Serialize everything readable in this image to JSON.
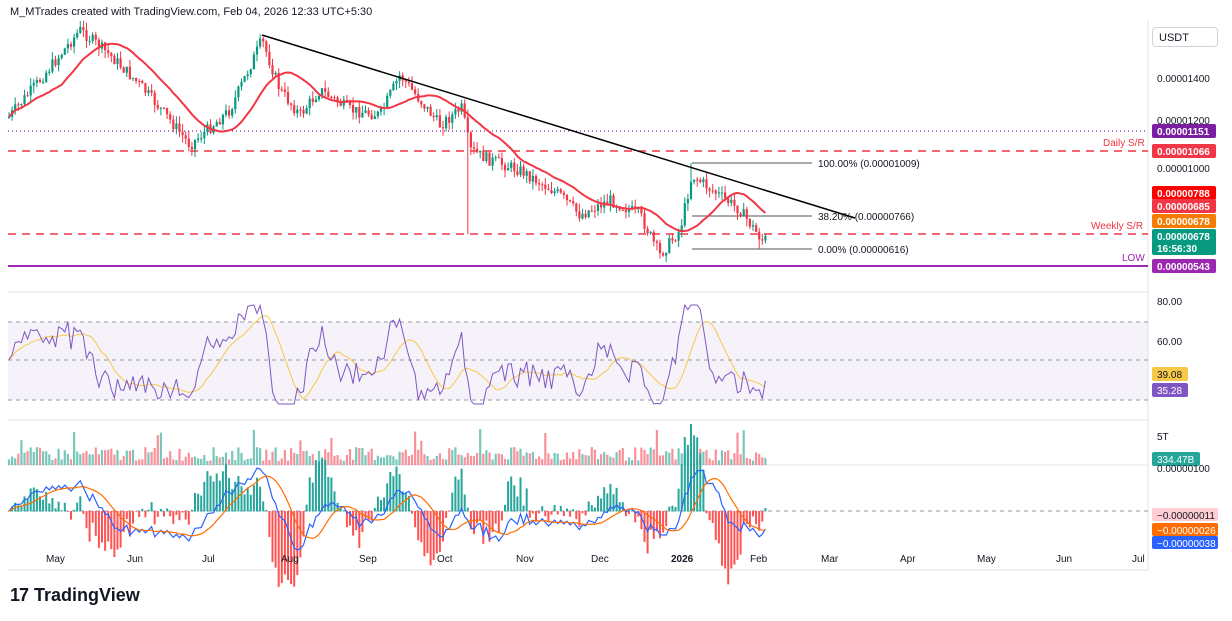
{
  "header": {
    "attribution": "M_MTrades created with TradingView.com, Feb 04, 2026 12:33 UTC+5:30"
  },
  "brand": {
    "name": "TradingView",
    "logo": "17"
  },
  "currency": "USDT",
  "chart_data": {
    "type": "candlestick",
    "x_labels": [
      "May",
      "Jun",
      "Jul",
      "Aug",
      "Sep",
      "Oct",
      "Nov",
      "Dec",
      "2026",
      "Feb",
      "Mar",
      "Apr",
      "May",
      "Jun",
      "Jul"
    ],
    "price_axis": {
      "tick_labels": [
        "0.00001400",
        "0.00001200",
        "0.00001000"
      ]
    },
    "price_badges": [
      {
        "label": "0.00001151",
        "color": "#7b1fa2"
      },
      {
        "label": "0.00001066",
        "color": "#f23645"
      },
      {
        "label": "0.00000788",
        "color": "#ff0000"
      },
      {
        "label": "0.00000685",
        "color": "#f23645"
      },
      {
        "label": "0.00000678",
        "color": "#f57c00"
      },
      {
        "label": "0.00000678",
        "color": "#089981"
      },
      {
        "label": "16:56:30",
        "color": "#089981"
      },
      {
        "label": "0.00000543",
        "color": "#9c27b0"
      }
    ],
    "annotations": {
      "daily_sr": "Daily S/R",
      "weekly_sr": "Weekly S/R",
      "low": "LOW",
      "fib_100": "100.00% (0.00001009)",
      "fib_382": "38.20% (0.00000766)",
      "fib_0": "0.00% (0.00000616)"
    },
    "rsi": {
      "tick_labels": [
        "80.00",
        "60.00"
      ],
      "badges": [
        {
          "label": "39.08",
          "color": "#f7c948"
        },
        {
          "label": "35.28",
          "color": "#7e57c2"
        }
      ]
    },
    "volume": {
      "tick_labels": [
        "5T"
      ],
      "badge": {
        "label": "334.47B",
        "color": "#26a69a"
      }
    },
    "macd": {
      "tick_labels": [
        "0.00000100"
      ],
      "badges": [
        {
          "label": "−0.00000011",
          "color": "#ffcdd2",
          "text": "#131722"
        },
        {
          "label": "−0.00000026",
          "color": "#ff6d00",
          "text": "#ffffff"
        },
        {
          "label": "−0.00000038",
          "color": "#2962ff",
          "text": "#ffffff"
        }
      ]
    },
    "colors": {
      "up": "#089981",
      "down": "#f23645",
      "ma": "#f23645",
      "trend": "#000000",
      "rsi": "#7e57c2",
      "rsi_ma": "#f7c948"
    }
  }
}
